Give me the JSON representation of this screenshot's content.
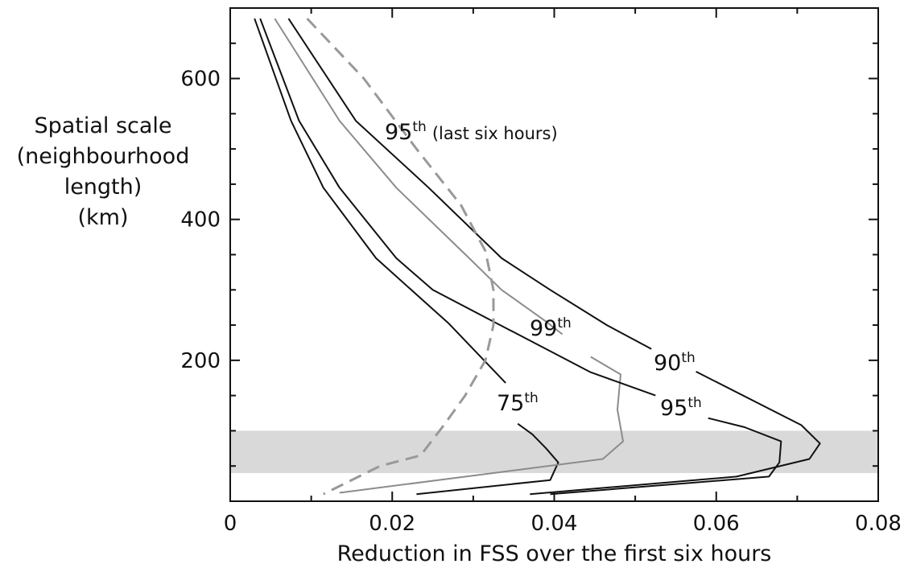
{
  "chart_data": {
    "type": "line",
    "xlabel": "Reduction in FSS over the first six hours",
    "ylabel_lines": [
      "Spatial scale",
      "(neighbourhood",
      "length)",
      "(km)"
    ],
    "xlim": [
      0,
      0.08
    ],
    "ylim": [
      0,
      700
    ],
    "x_ticks": [
      "0",
      "0.02",
      "0.04",
      "0.06",
      "0.08"
    ],
    "y_ticks": [
      "200",
      "400",
      "600"
    ],
    "x_tick_values": [
      0,
      0.02,
      0.04,
      0.06,
      0.08
    ],
    "y_tick_values": [
      200,
      400,
      600
    ],
    "shaded_band": {
      "y_from": 40,
      "y_to": 100,
      "color": "#d9d9d9"
    },
    "series": [
      {
        "name": "75th",
        "label": "75",
        "label_sup": "th",
        "color": "#111111",
        "dash": false,
        "points": [
          [
            0.003,
            685
          ],
          [
            0.0075,
            540
          ],
          [
            0.0115,
            445
          ],
          [
            0.018,
            345
          ],
          [
            0.027,
            252
          ],
          [
            0.034,
            168
          ]
        ]
      },
      {
        "name": "75th low",
        "color": "#111111",
        "dash": false,
        "points": [
          [
            0.023,
            10
          ],
          [
            0.0395,
            30
          ],
          [
            0.0405,
            55
          ],
          [
            0.039,
            75
          ],
          [
            0.0373,
            95
          ],
          [
            0.0355,
            110
          ]
        ]
      },
      {
        "name": "99th",
        "label": "99",
        "label_sup": "th",
        "color": "#8c8c8c",
        "dash": false,
        "points": [
          [
            0.0055,
            685
          ],
          [
            0.0135,
            540
          ],
          [
            0.0205,
            445
          ],
          [
            0.0295,
            345
          ],
          [
            0.0335,
            300
          ],
          [
            0.039,
            255
          ],
          [
            0.041,
            237
          ]
        ]
      },
      {
        "name": "99th low",
        "color": "#8c8c8c",
        "dash": false,
        "points": [
          [
            0.0135,
            12
          ],
          [
            0.046,
            60
          ],
          [
            0.0485,
            85
          ],
          [
            0.0478,
            130
          ],
          [
            0.0482,
            180
          ],
          [
            0.0445,
            205
          ]
        ]
      },
      {
        "name": "95th",
        "label": "95",
        "label_sup": "th",
        "color": "#111111",
        "dash": false,
        "points": [
          [
            0.0037,
            685
          ],
          [
            0.0085,
            540
          ],
          [
            0.0135,
            445
          ],
          [
            0.0205,
            345
          ],
          [
            0.025,
            300
          ],
          [
            0.0325,
            255
          ],
          [
            0.0445,
            183
          ],
          [
            0.0525,
            150
          ]
        ]
      },
      {
        "name": "95th low",
        "color": "#111111",
        "dash": false,
        "points": [
          [
            0.0395,
            10
          ],
          [
            0.0665,
            35
          ],
          [
            0.0678,
            55
          ],
          [
            0.068,
            85
          ],
          [
            0.0635,
            105
          ],
          [
            0.059,
            118
          ]
        ]
      },
      {
        "name": "90th",
        "label": "90",
        "label_sup": "th",
        "color": "#111111",
        "dash": false,
        "points": [
          [
            0.0072,
            685
          ],
          [
            0.0155,
            540
          ],
          [
            0.0245,
            445
          ],
          [
            0.0335,
            345
          ],
          [
            0.0395,
            300
          ],
          [
            0.0465,
            250
          ],
          [
            0.052,
            216
          ]
        ]
      },
      {
        "name": "90th low",
        "color": "#111111",
        "dash": false,
        "points": [
          [
            0.037,
            10
          ],
          [
            0.0625,
            35
          ],
          [
            0.0715,
            60
          ],
          [
            0.0728,
            82
          ],
          [
            0.0705,
            108
          ],
          [
            0.0575,
            184
          ]
        ]
      },
      {
        "name": "95th (last six hours)",
        "label": "95",
        "label_sup": "th",
        "label_suffix": "(last six hours)",
        "color": "#999999",
        "dash": true,
        "points": [
          [
            0.0095,
            685
          ],
          [
            0.0165,
            600
          ],
          [
            0.023,
            500
          ],
          [
            0.0285,
            420
          ],
          [
            0.0315,
            355
          ],
          [
            0.0325,
            300
          ],
          [
            0.0325,
            250
          ],
          [
            0.0315,
            200
          ],
          [
            0.029,
            150
          ],
          [
            0.0265,
            110
          ],
          [
            0.0235,
            65
          ],
          [
            0.0185,
            50
          ],
          [
            0.0115,
            10
          ]
        ]
      }
    ]
  }
}
